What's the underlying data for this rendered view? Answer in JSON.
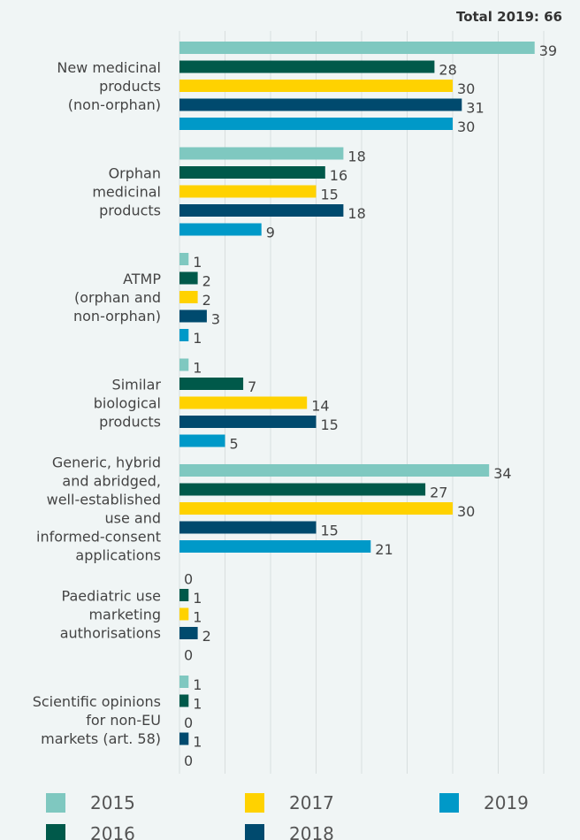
{
  "chart_data": {
    "type": "bar",
    "orientation": "horizontal",
    "title": "Total 2019: 66",
    "categories": [
      "New medicinal\nproducts\n(non-orphan)",
      "Orphan\nmedicinal\nproducts",
      "ATMP\n(orphan and\nnon-orphan)",
      "Similar\nbiological\nproducts",
      "Generic, hybrid\nand abridged,\nwell-established\nuse and\ninformed-consent\napplications",
      "Paediatric use\nmarketing\nauthorisations",
      "Scientific opinions\nfor non-EU\nmarkets (art. 58)"
    ],
    "series": [
      {
        "name": "2015",
        "color": "#7fc8c0",
        "values": [
          39,
          18,
          1,
          1,
          34,
          0,
          1
        ]
      },
      {
        "name": "2016",
        "color": "#00594a",
        "values": [
          28,
          16,
          2,
          7,
          27,
          1,
          1
        ]
      },
      {
        "name": "2017",
        "color": "#ffd200",
        "values": [
          30,
          15,
          2,
          14,
          30,
          1,
          0
        ]
      },
      {
        "name": "2018",
        "color": "#004a6e",
        "values": [
          31,
          18,
          3,
          15,
          15,
          2,
          1
        ]
      },
      {
        "name": "2019",
        "color": "#0099c8",
        "values": [
          30,
          9,
          1,
          5,
          21,
          0,
          0
        ]
      }
    ],
    "xlim": [
      0,
      40
    ],
    "xticks": [
      0,
      5,
      10,
      15,
      20,
      25,
      30,
      35,
      40
    ],
    "grid": true,
    "legend": "bottom"
  }
}
